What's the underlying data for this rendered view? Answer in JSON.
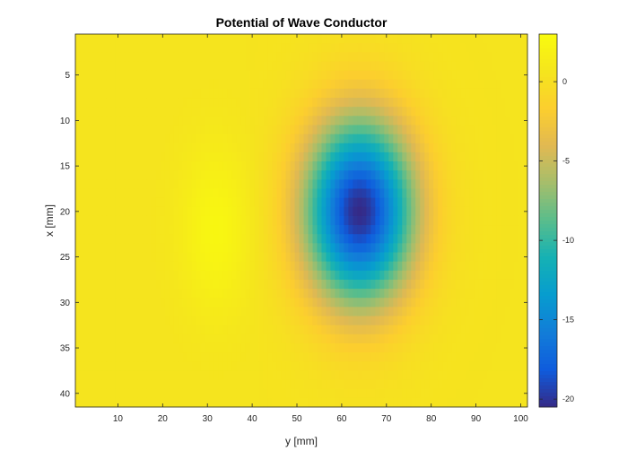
{
  "chart_data": {
    "type": "heatmap",
    "title": "Potential of Wave Conductor",
    "xlabel": "y [mm]",
    "ylabel": "x [mm]",
    "x_range": [
      1,
      101
    ],
    "y_range": [
      1,
      41
    ],
    "y_reversed": true,
    "x_ticks": [
      10,
      20,
      30,
      40,
      50,
      60,
      70,
      80,
      90,
      100
    ],
    "y_ticks": [
      5,
      10,
      15,
      20,
      25,
      30,
      35,
      40
    ],
    "colorbar": {
      "range": [
        -20.5,
        3
      ],
      "ticks": [
        0,
        -5,
        -10,
        -15,
        -20
      ],
      "colormap": "parula"
    },
    "field_features": [
      {
        "kind": "minimum",
        "y_mm": 64,
        "x_mm": 20,
        "value": -20.5,
        "extent_y_mm": 12,
        "extent_x_mm": 10
      },
      {
        "kind": "maximum",
        "y_mm": 32,
        "x_mm": 22,
        "value": 2.5,
        "extent_y_mm": 8,
        "extent_x_mm": 9
      }
    ],
    "background_value": 0.5,
    "grid": false,
    "legend": "none"
  }
}
